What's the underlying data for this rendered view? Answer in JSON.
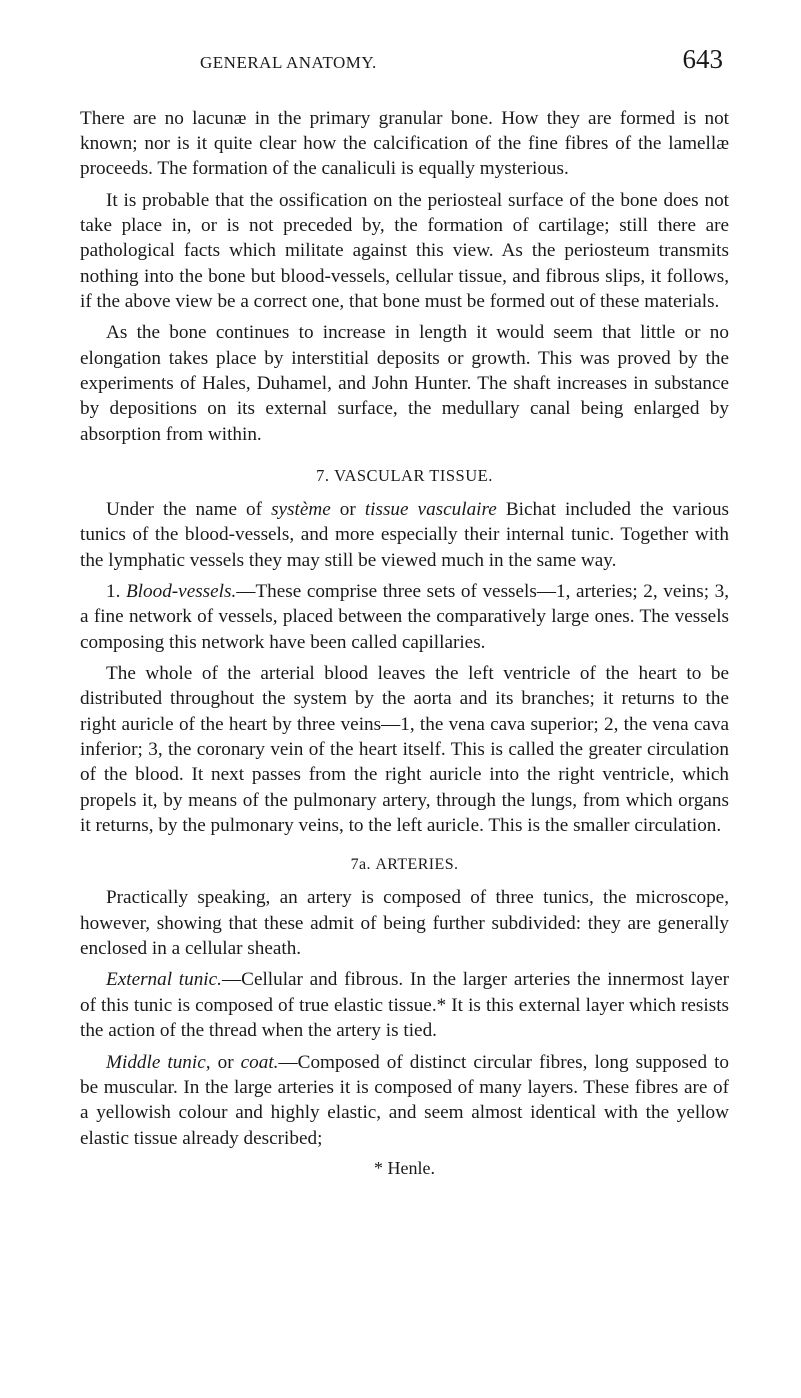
{
  "header": {
    "running_title": "GENERAL ANATOMY.",
    "page_number": "643"
  },
  "body": {
    "p1": "There are no lacunæ in the primary granular bone. How they are formed is not known; nor is it quite clear how the calcification of the fine fibres of the lamellæ proceeds. The formation of the canaliculi is equally mysterious.",
    "p2": "It is probable that the ossification on the periosteal surface of the bone does not take place in, or is not preceded by, the formation of cartilage; still there are pathological facts which militate against this view. As the periosteum transmits nothing into the bone but blood-vessels, cellular tissue, and fibrous slips, it follows, if the above view be a correct one, that bone must be formed out of these materials.",
    "p3": "As the bone continues to increase in length it would seem that little or no elongation takes place by interstitial deposits or growth. This was proved by the experiments of Hales, Duhamel, and John Hunter. The shaft increases in substance by depositions on its external surface, the medullary canal being enlarged by absorption from within.",
    "section7": {
      "number": "7.",
      "title": "VASCULAR TISSUE."
    },
    "p4_pre": "Under the name of ",
    "p4_it1": "système",
    "p4_mid1": " or ",
    "p4_it2": "tissue vasculaire",
    "p4_post": " Bichat included the various tunics of the blood-vessels, and more especially their internal tunic. Together with the lymphatic vessels they may still be viewed much in the same way.",
    "p5_num": "1. ",
    "p5_it": "Blood-vessels.",
    "p5_rest": "—These comprise three sets of vessels—1, arteries; 2, veins; 3, a fine network of vessels, placed between the comparatively large ones. The vessels composing this network have been called capillaries.",
    "p6": "The whole of the arterial blood leaves the left ventricle of the heart to be distributed throughout the system by the aorta and its branches; it returns to the right auricle of the heart by three veins—1, the vena cava superior; 2, the vena cava inferior; 3, the coronary vein of the heart itself. This is called the greater circulation of the blood. It next passes from the right auricle into the right ventricle, which propels it, by means of the pulmonary artery, through the lungs, from which organs it returns, by the pulmonary veins, to the left auricle. This is the smaller circulation.",
    "section7a": {
      "number": "7a.",
      "title": "ARTERIES."
    },
    "p7": "Practically speaking, an artery is composed of three tunics, the microscope, however, showing that these admit of being further subdivided: they are generally enclosed in a cellular sheath.",
    "p8_it": "External tunic.",
    "p8_rest": "—Cellular and fibrous. In the larger arteries the innermost layer of this tunic is composed of true elastic tissue.* It is this external layer which resists the action of the thread when the artery is tied.",
    "p9_it1": "Middle tunic,",
    "p9_mid": " or ",
    "p9_it2": "coat.",
    "p9_rest": "—Composed of distinct circular fibres, long supposed to be muscular. In the large arteries it is composed of many layers. These fibres are of a yellowish colour and highly elastic, and seem almost identical with the yellow elastic tissue already described;",
    "footnote": "* Henle."
  }
}
